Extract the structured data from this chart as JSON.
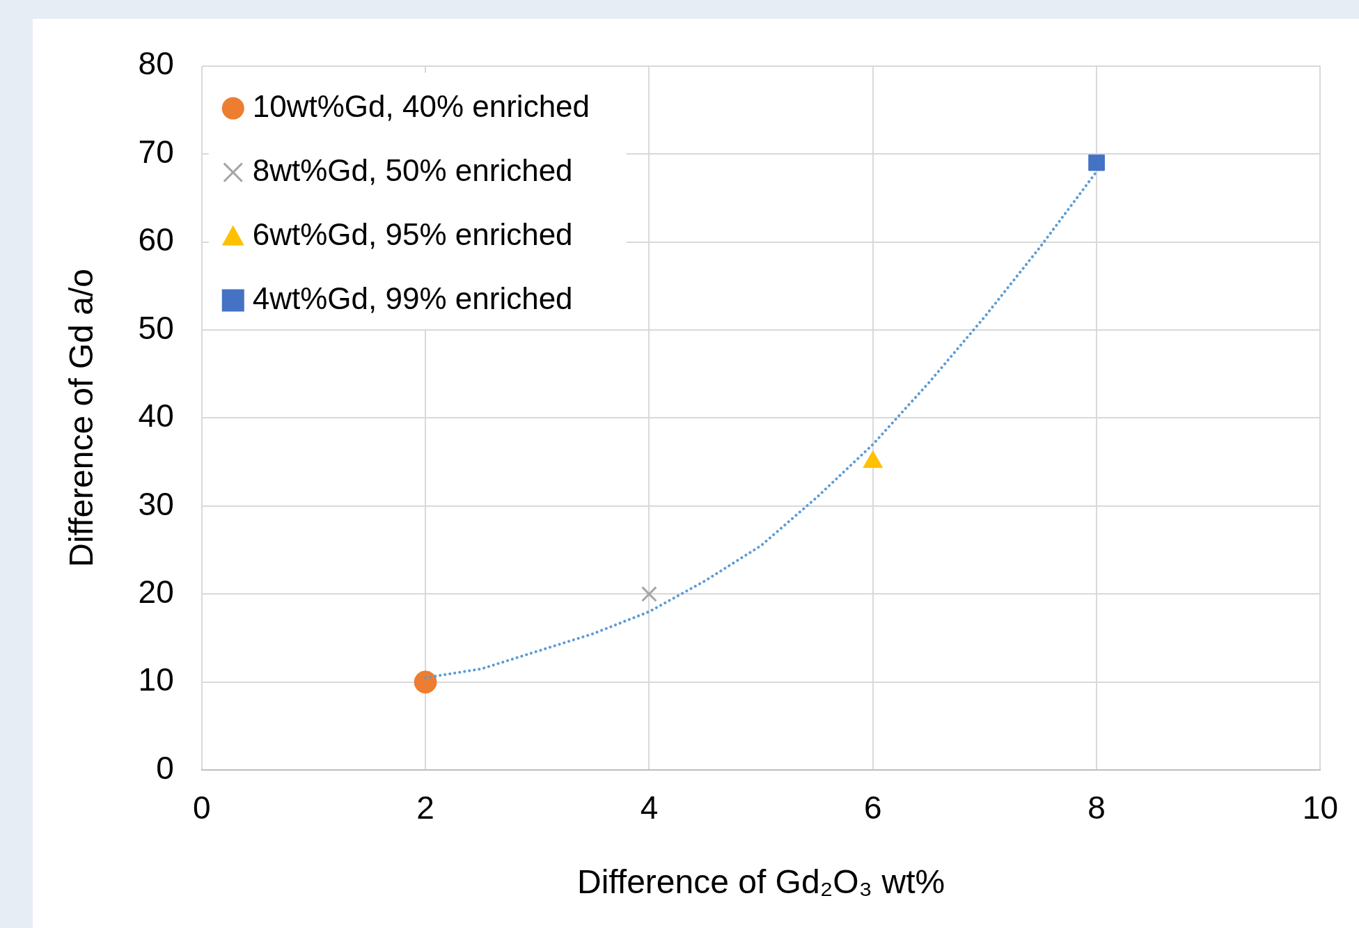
{
  "chart_data": {
    "type": "scatter",
    "xlabel": "Difference of Gd₂O₃ wt%",
    "ylabel": "Difference of Gd a/o",
    "xlim": [
      0,
      10
    ],
    "xticks": [
      0,
      2,
      4,
      6,
      8,
      10
    ],
    "ylim": [
      0,
      80
    ],
    "yticks": [
      0,
      10,
      20,
      30,
      40,
      50,
      60,
      70,
      80
    ],
    "grid": true,
    "legend": "top left",
    "series": [
      {
        "name": "10wt%Gd, 40% enriched",
        "color": "#ed7d31",
        "marker": "circle",
        "x": [
          2
        ],
        "values": [
          10
        ]
      },
      {
        "name": "8wt%Gd, 50% enriched",
        "color": "#a5a5a5",
        "marker": "cross",
        "x": [
          4
        ],
        "values": [
          20
        ]
      },
      {
        "name": "6wt%Gd, 95% enriched",
        "color": "#ffc000",
        "marker": "triangle",
        "x": [
          6
        ],
        "values": [
          35
        ]
      },
      {
        "name": "4wt%Gd, 99% enriched",
        "color": "#4472c4",
        "marker": "square",
        "x": [
          8
        ],
        "values": [
          69
        ]
      },
      {
        "type": "line",
        "color": "#5b9bd5",
        "marker": "none",
        "line_style": "dotted",
        "x": [
          2,
          2.5,
          3,
          3.5,
          4,
          4.5,
          5,
          5.5,
          6,
          6.5,
          7,
          7.5,
          8
        ],
        "values": [
          10.5,
          11.5,
          13.5,
          15.5,
          18,
          21.5,
          25.5,
          31,
          37,
          44,
          51.5,
          59.5,
          68
        ]
      }
    ]
  }
}
